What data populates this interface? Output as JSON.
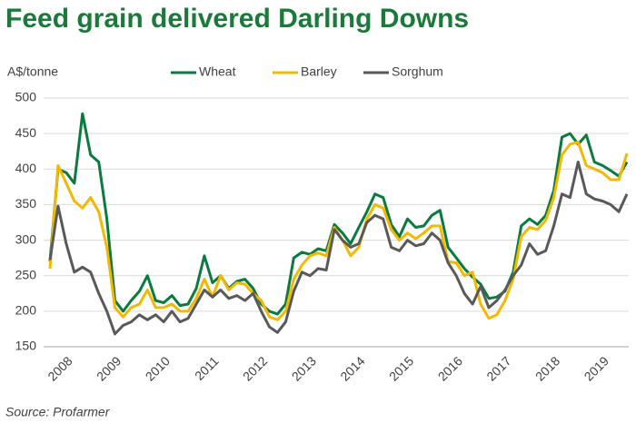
{
  "chart_data": {
    "type": "line",
    "title": "Feed grain delivered Darling Downs",
    "y_label": "A$/tonne",
    "source": "Source: Profarmer",
    "categories": [
      null,
      "2008",
      null,
      null,
      null,
      null,
      null,
      "2009",
      null,
      null,
      null,
      null,
      null,
      "2010",
      null,
      null,
      null,
      null,
      null,
      "2011",
      null,
      null,
      null,
      null,
      null,
      "2012",
      null,
      null,
      null,
      null,
      null,
      "2013",
      null,
      null,
      null,
      null,
      null,
      "2014",
      null,
      null,
      null,
      null,
      null,
      "2015",
      null,
      null,
      null,
      null,
      null,
      "2016",
      null,
      null,
      null,
      null,
      null,
      "2017",
      null,
      null,
      null,
      null,
      null,
      "2018",
      null,
      null,
      null,
      null,
      null,
      "2019",
      null,
      null,
      null,
      null
    ],
    "series": [
      {
        "name": "Wheat",
        "color": "#0a7a3e",
        "values": [
          270,
          400,
          395,
          380,
          478,
          420,
          410,
          330,
          215,
          200,
          215,
          228,
          250,
          215,
          212,
          222,
          208,
          210,
          232,
          278,
          240,
          250,
          232,
          242,
          245,
          232,
          210,
          200,
          196,
          210,
          275,
          283,
          280,
          288,
          285,
          322,
          310,
          295,
          318,
          340,
          365,
          360,
          322,
          305,
          330,
          318,
          320,
          335,
          342,
          290,
          275,
          260,
          248,
          238,
          218,
          220,
          228,
          255,
          320,
          330,
          322,
          335,
          370,
          445,
          450,
          435,
          448,
          410,
          405,
          398,
          390,
          410
        ]
      },
      {
        "name": "Barley",
        "color": "#f5b800",
        "values": [
          260,
          405,
          380,
          355,
          345,
          360,
          340,
          290,
          205,
          192,
          205,
          210,
          230,
          205,
          205,
          210,
          200,
          200,
          218,
          245,
          220,
          250,
          230,
          240,
          238,
          225,
          215,
          192,
          188,
          200,
          245,
          265,
          278,
          282,
          278,
          318,
          300,
          278,
          290,
          330,
          350,
          345,
          315,
          300,
          310,
          302,
          310,
          320,
          320,
          270,
          268,
          250,
          255,
          210,
          190,
          195,
          215,
          245,
          305,
          318,
          315,
          328,
          360,
          420,
          435,
          438,
          405,
          400,
          395,
          385,
          385,
          422
        ]
      },
      {
        "name": "Sorghum",
        "color": "#595959",
        "values": [
          272,
          348,
          295,
          255,
          262,
          255,
          225,
          200,
          168,
          180,
          185,
          195,
          188,
          195,
          185,
          200,
          185,
          190,
          210,
          230,
          220,
          230,
          218,
          222,
          215,
          225,
          200,
          178,
          170,
          185,
          228,
          255,
          250,
          260,
          258,
          315,
          300,
          290,
          295,
          325,
          335,
          330,
          290,
          285,
          300,
          292,
          295,
          310,
          300,
          268,
          250,
          225,
          210,
          235,
          205,
          215,
          230,
          250,
          265,
          295,
          280,
          285,
          320,
          365,
          360,
          410,
          365,
          358,
          355,
          350,
          340,
          365
        ]
      }
    ],
    "ylim": [
      150,
      500
    ],
    "yticks": [
      150,
      200,
      250,
      300,
      350,
      400,
      450,
      500
    ],
    "grid": true,
    "legend": "top"
  }
}
